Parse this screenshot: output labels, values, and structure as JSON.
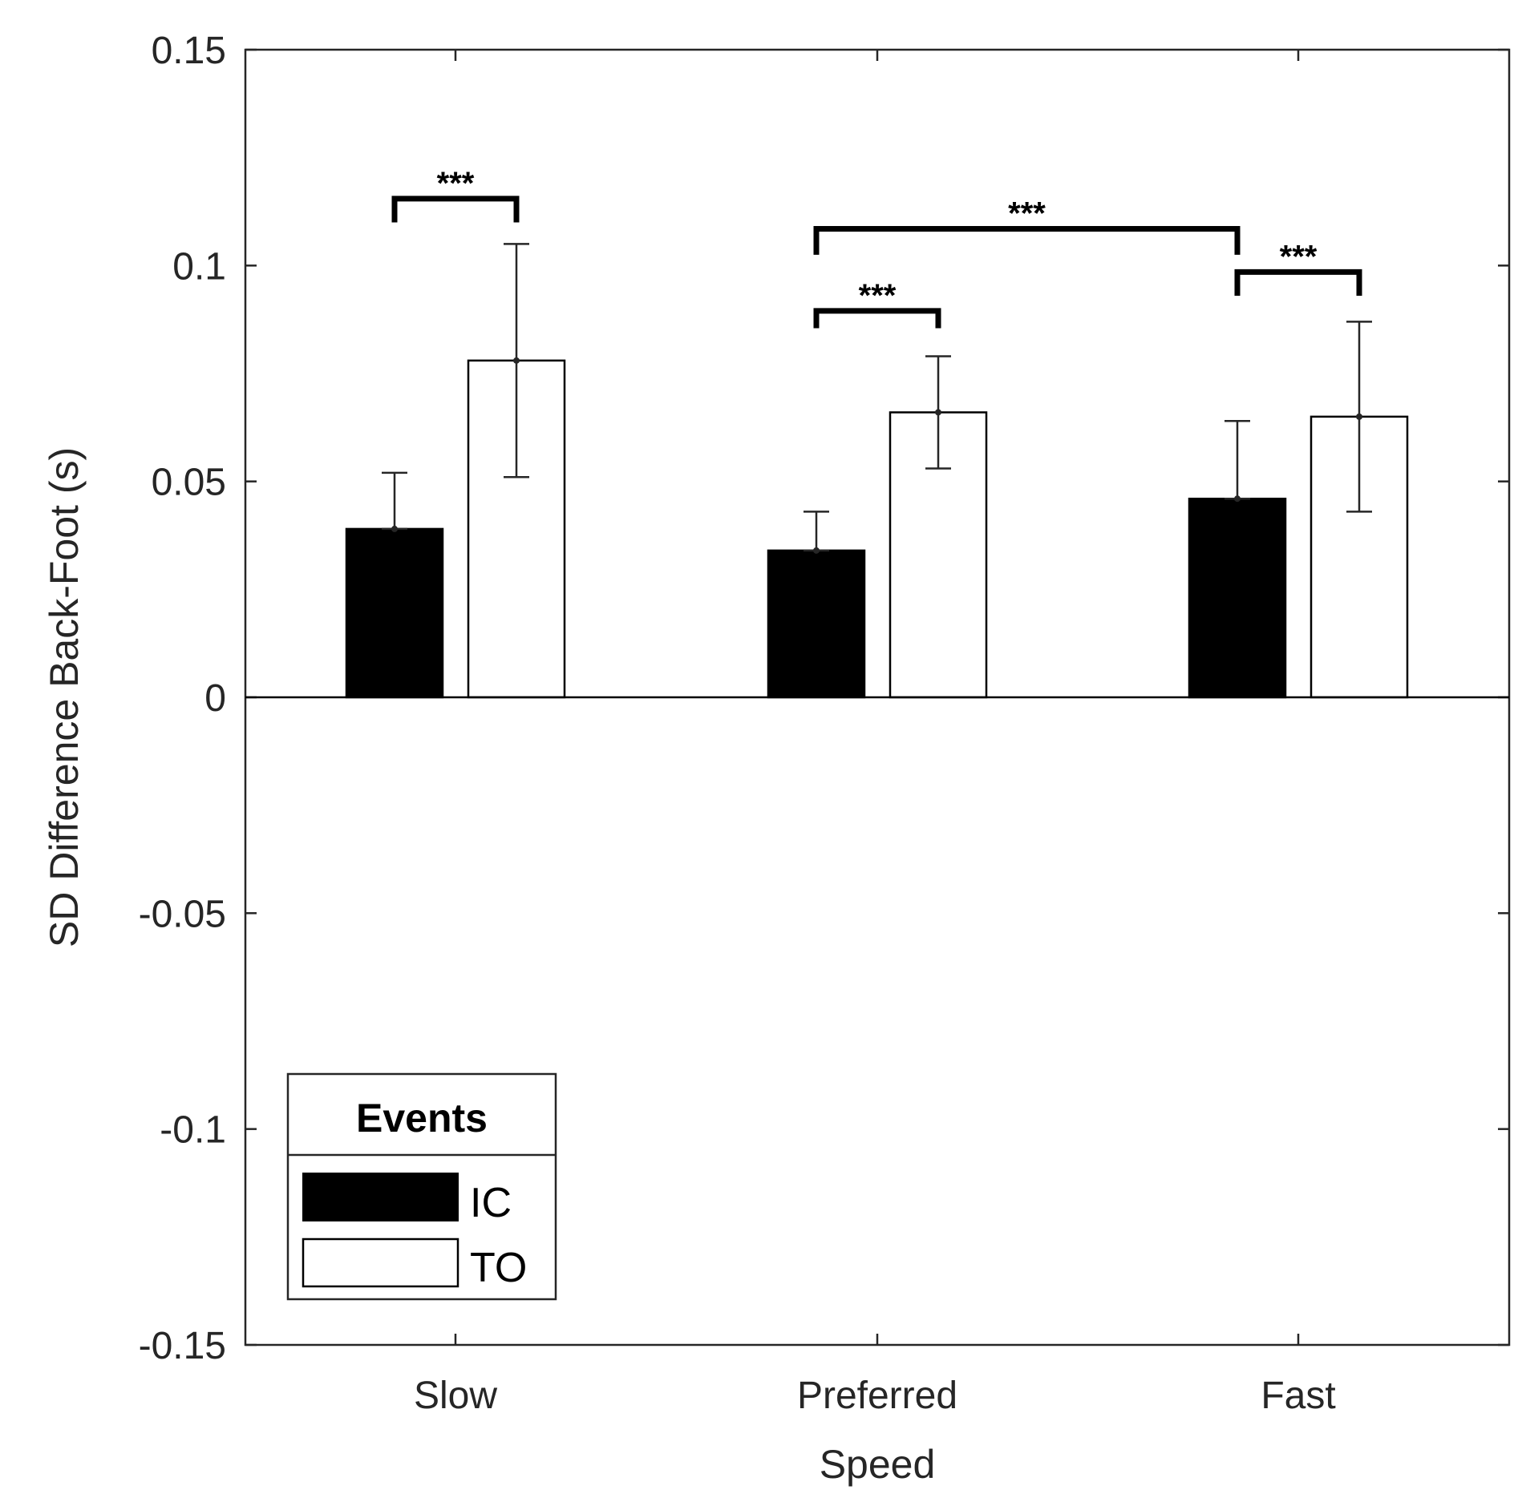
{
  "chart_data": {
    "type": "bar",
    "title": "",
    "xlabel": "Speed",
    "ylabel": "SD Difference Back-Foot (s)",
    "ylim": [
      -0.15,
      0.15
    ],
    "yticks": [
      "0.15",
      "0.1",
      "0.05",
      "0",
      "-0.05",
      "-0.1",
      "-0.15"
    ],
    "ytick_values": [
      0.15,
      0.1,
      0.05,
      0,
      -0.05,
      -0.1,
      -0.15
    ],
    "categories": [
      "Slow",
      "Preferred",
      "Fast"
    ],
    "series": [
      {
        "name": "IC",
        "values": [
          0.039,
          0.034,
          0.046
        ],
        "err_low": [
          0.039,
          0.034,
          0.046
        ],
        "err_high": [
          0.052,
          0.043,
          0.064
        ],
        "fill": "#000000"
      },
      {
        "name": "TO",
        "values": [
          0.078,
          0.066,
          0.065
        ],
        "err_low": [
          0.051,
          0.053,
          0.043
        ],
        "err_high": [
          0.105,
          0.079,
          0.087
        ],
        "fill": "#ffffff"
      }
    ],
    "legend": {
      "title": "Events",
      "position": "bottom-left"
    },
    "significance": [
      {
        "label": "***",
        "from": {
          "category": 0,
          "series": 0
        },
        "to": {
          "category": 0,
          "series": 1
        },
        "y": 0.1155,
        "leg_bottom": 0.11
      },
      {
        "label": "***",
        "from": {
          "category": 1,
          "series": 0
        },
        "to": {
          "category": 2,
          "series": 0
        },
        "y": 0.1085,
        "leg_bottom": 0.1025
      },
      {
        "label": "***",
        "from": {
          "category": 1,
          "series": 0
        },
        "to": {
          "category": 1,
          "series": 1
        },
        "y": 0.0895,
        "leg_bottom": 0.0855
      },
      {
        "label": "***",
        "from": {
          "category": 2,
          "series": 0
        },
        "to": {
          "category": 2,
          "series": 1
        },
        "y": 0.0985,
        "leg_bottom": 0.093
      }
    ]
  }
}
